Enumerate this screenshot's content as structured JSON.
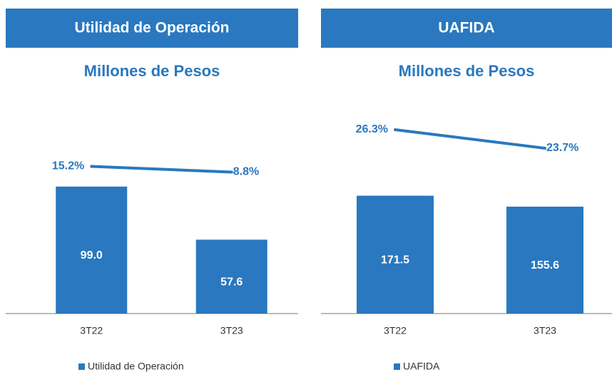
{
  "chart_data": [
    {
      "type": "bar",
      "title": "Utilidad de Operación",
      "subtitle": "Millones de Pesos",
      "categories": [
        "3T22",
        "3T23"
      ],
      "ylim": [
        0,
        150
      ],
      "y2lim": [
        -150,
        66
      ],
      "series": [
        {
          "name": "Utilidad de Operación",
          "color": "#2a78bf",
          "values": [
            99.0,
            57.6
          ],
          "value_labels": [
            "99.0",
            "57.6"
          ]
        },
        {
          "type": "line",
          "axis": "y2",
          "color": "#2a78bf",
          "values": [
            15.2,
            8.8
          ],
          "value_labels": [
            "15.2%",
            "8.8%"
          ]
        }
      ]
    },
    {
      "type": "bar",
      "title": "UAFIDA",
      "subtitle": "Millones de Pesos",
      "categories": [
        "3T22",
        "3T23"
      ],
      "ylim": [
        0,
        280
      ],
      "y2lim": [
        0.5,
        27.5
      ],
      "series": [
        {
          "name": "UAFIDA",
          "color": "#2a78bf",
          "values": [
            171.5,
            155.6
          ],
          "value_labels": [
            "171.5",
            "155.6"
          ]
        },
        {
          "type": "line",
          "axis": "y2",
          "color": "#2a78bf",
          "values": [
            26.3,
            23.7
          ],
          "value_labels": [
            "26.3%",
            "23.7%"
          ]
        }
      ]
    }
  ]
}
